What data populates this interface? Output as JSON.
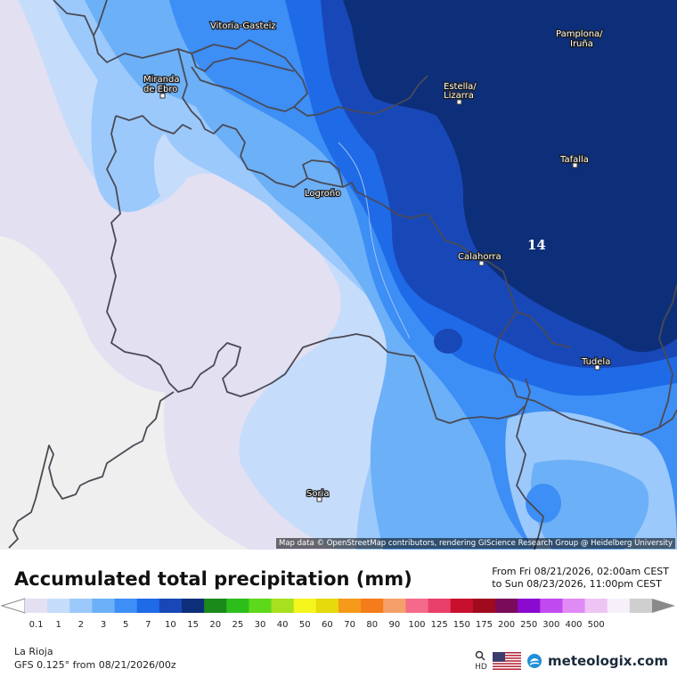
{
  "map": {
    "cities": [
      {
        "name": "Vitoria-Gasteiz"
      },
      {
        "name": "Pamplona/\nIruña"
      },
      {
        "name": "Miranda\nde Ebro"
      },
      {
        "name": "Estella/\nLizarra"
      },
      {
        "name": "Tafalla"
      },
      {
        "name": "Logroño"
      },
      {
        "name": "Calahorra"
      },
      {
        "name": "Tudela"
      },
      {
        "name": "Soria"
      }
    ],
    "max_value_label": "14",
    "attribution": "Map data © OpenStreetMap contributors, rendering GIScience Research Group @ Heidelberg University"
  },
  "header": {
    "title": "Accumulated total precipitation (mm)",
    "range_from": "From Fri 08/21/2026, 02:00am CEST",
    "range_to": "to Sun 08/23/2026, 11:00pm CEST"
  },
  "legend": {
    "labels": [
      "0.1",
      "1",
      "2",
      "3",
      "5",
      "7",
      "10",
      "15",
      "20",
      "25",
      "30",
      "40",
      "50",
      "60",
      "70",
      "80",
      "90",
      "100",
      "125",
      "150",
      "175",
      "200",
      "250",
      "300",
      "400",
      "500"
    ],
    "colors": [
      "#e3e0f2",
      "#c6dcfb",
      "#9cc9fb",
      "#6cb0f7",
      "#3d8ef5",
      "#1f6ae6",
      "#1848b8",
      "#0d2f7a",
      "#1a8a1a",
      "#2cbf1c",
      "#5ed81b",
      "#a8e01e",
      "#f5f51e",
      "#e6d90c",
      "#f59a1a",
      "#f57c1a",
      "#f5a06a",
      "#f56a8a",
      "#e8406a",
      "#c8102e",
      "#a00a1e",
      "#7a0a5a",
      "#8a0ad0",
      "#c04af0",
      "#e08af5",
      "#eec4f5",
      "#f5f0fa",
      "#cfcfcf"
    ]
  },
  "footer": {
    "region": "La Rioja",
    "model": "GFS 0.125° from  08/21/2026/00z",
    "hd_label": "HD",
    "brand": "meteologix.com"
  }
}
